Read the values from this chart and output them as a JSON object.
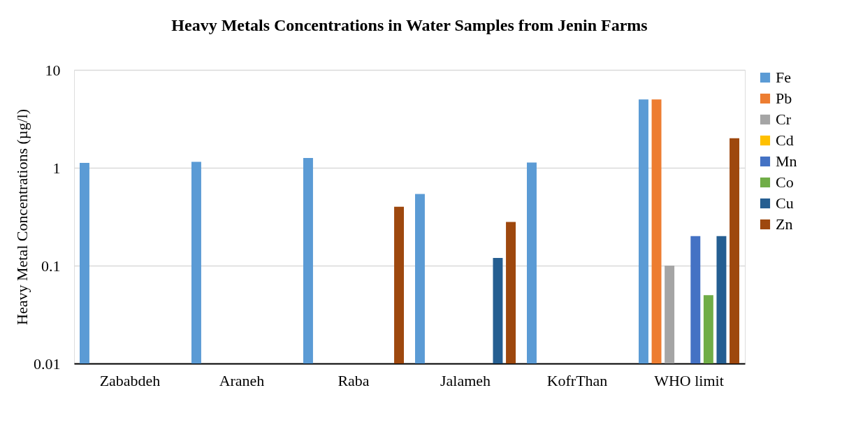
{
  "chart_data": {
    "type": "bar",
    "title": "Heavy Metals Concentrations in Water Samples from Jenin Farms",
    "ylabel": "Heavy Metal Concentrations (µg/l)",
    "categories": [
      "Zababdeh",
      "Araneh",
      "Raba",
      "Jalameh",
      "KofrThan",
      "WHO limit"
    ],
    "series": [
      {
        "name": "Fe",
        "color": "#5b9bd5",
        "values": [
          1.12,
          1.15,
          1.26,
          0.54,
          1.13,
          5
        ]
      },
      {
        "name": "Pb",
        "color": "#ed7d31",
        "values": [
          null,
          null,
          null,
          null,
          null,
          5
        ]
      },
      {
        "name": "Cr",
        "color": "#a5a5a5",
        "values": [
          null,
          null,
          null,
          null,
          null,
          0.1
        ]
      },
      {
        "name": "Cd",
        "color": "#ffc000",
        "values": [
          null,
          null,
          null,
          null,
          null,
          null
        ]
      },
      {
        "name": "Mn",
        "color": "#4472c4",
        "values": [
          null,
          null,
          null,
          null,
          null,
          0.2
        ]
      },
      {
        "name": "Co",
        "color": "#70ad47",
        "values": [
          null,
          null,
          null,
          null,
          null,
          0.05
        ]
      },
      {
        "name": "Cu",
        "color": "#255e91",
        "values": [
          null,
          null,
          null,
          0.12,
          null,
          0.2
        ]
      },
      {
        "name": "Zn",
        "color": "#9e480e",
        "values": [
          null,
          null,
          0.4,
          0.28,
          null,
          2
        ]
      }
    ],
    "log": true,
    "ylim": [
      0.01,
      10
    ],
    "yticks": [
      0.01,
      0.1,
      1,
      10
    ],
    "grid": "y",
    "legend": "right"
  }
}
